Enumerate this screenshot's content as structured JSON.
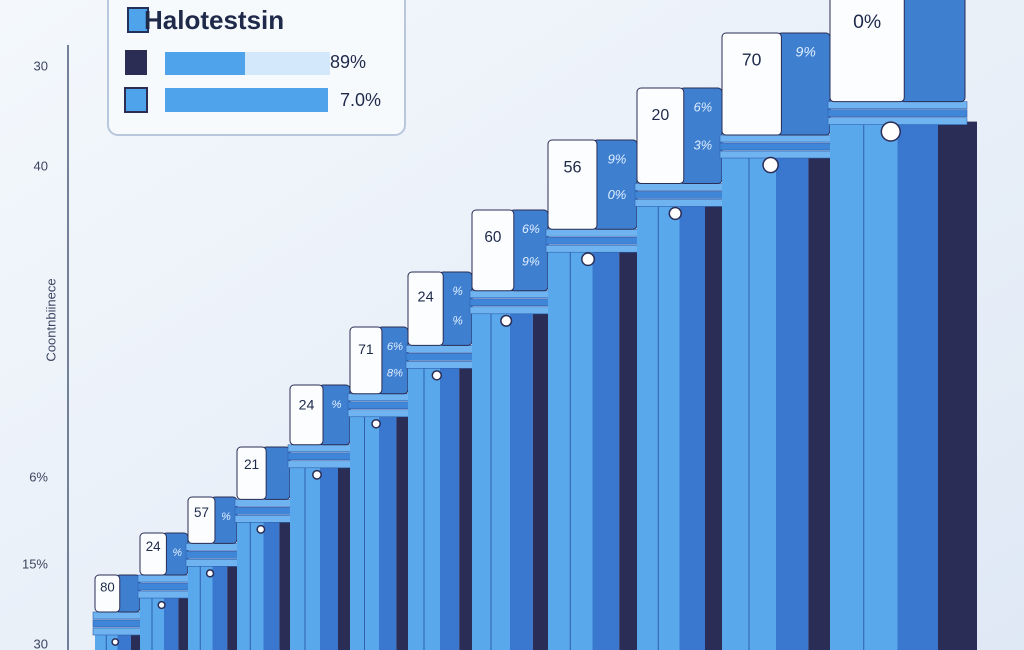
{
  "legend": {
    "title": "Halotestsin",
    "items": [
      {
        "label": "89%"
      },
      {
        "label": "7.0%"
      }
    ]
  },
  "y_axis": {
    "title": "Coontnbiinece",
    "labels": [
      "30",
      "40",
      "6%",
      "15%",
      "30"
    ]
  },
  "bars": [
    {
      "label": "80"
    },
    {
      "label": "24",
      "marks": [
        "%"
      ]
    },
    {
      "label": "57",
      "marks": [
        "%"
      ]
    },
    {
      "label": "21"
    },
    {
      "label": "24",
      "marks": [
        "%"
      ]
    },
    {
      "label": "71",
      "marks": [
        "6%",
        "8%"
      ]
    },
    {
      "label": "24",
      "marks": [
        "%",
        "%"
      ]
    },
    {
      "label": "60",
      "marks": [
        "6%",
        "9%"
      ]
    },
    {
      "label": "56",
      "marks": [
        "9%",
        "0%"
      ]
    },
    {
      "label": "20",
      "marks": [
        "6%",
        "3%"
      ]
    },
    {
      "label": "70",
      "marks": [
        "9%"
      ]
    },
    {
      "label": "0%"
    }
  ]
}
